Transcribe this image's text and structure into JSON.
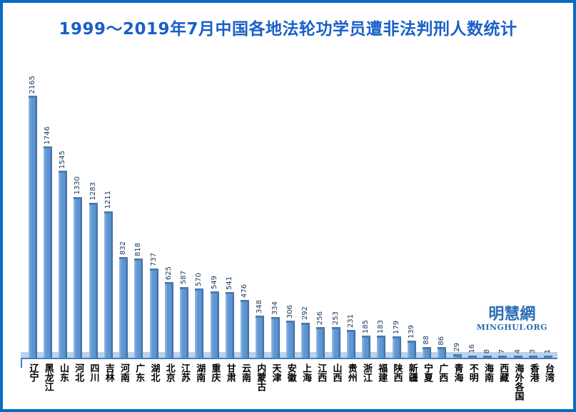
{
  "chart": {
    "title": "1999～2019年7月中国各地法轮功学员遭非法判刑人数统计"
  },
  "chart_data": {
    "type": "bar",
    "title": "1999～2019年7月中国各地法轮功学员遭非法判刑人数统计",
    "categories": [
      "辽宁",
      "黑龙江",
      "山东",
      "河北",
      "四川",
      "吉林",
      "河南",
      "广东",
      "湖北",
      "北京",
      "江苏",
      "湖南",
      "重庆",
      "甘肃",
      "云南",
      "内蒙古",
      "天津",
      "安徽",
      "上海",
      "江西",
      "山西",
      "贵州",
      "浙江",
      "福建",
      "陕西",
      "新疆",
      "宁夏",
      "广西",
      "青海",
      "不明",
      "海南",
      "西藏",
      "海外各国",
      "香港",
      "台湾"
    ],
    "values": [
      2165,
      1746,
      1545,
      1330,
      1283,
      1211,
      832,
      818,
      737,
      625,
      587,
      570,
      549,
      541,
      476,
      348,
      334,
      306,
      292,
      256,
      253,
      231,
      185,
      183,
      179,
      139,
      88,
      86,
      29,
      16,
      8,
      7,
      4,
      3,
      1
    ],
    "xlabel": "",
    "ylabel": "",
    "ylim": [
      0,
      2165
    ],
    "grid": false,
    "legend": false,
    "value_labels_rotated": true
  },
  "logo": {
    "cjk": "明慧網",
    "latin": "MINGHUI.ORG"
  },
  "colors": {
    "frame_border": "#0a6bc2",
    "title_text": "#1a5fc8",
    "bar_fill": "#5e96d3",
    "bar_edge_dark": "#38689e",
    "bar_edge_light": "#9cc0e8",
    "value_label": "#17375e",
    "axis_line": "#4a7ebb",
    "floor_strip": "#b9d3ec",
    "category_label": "#000000"
  }
}
